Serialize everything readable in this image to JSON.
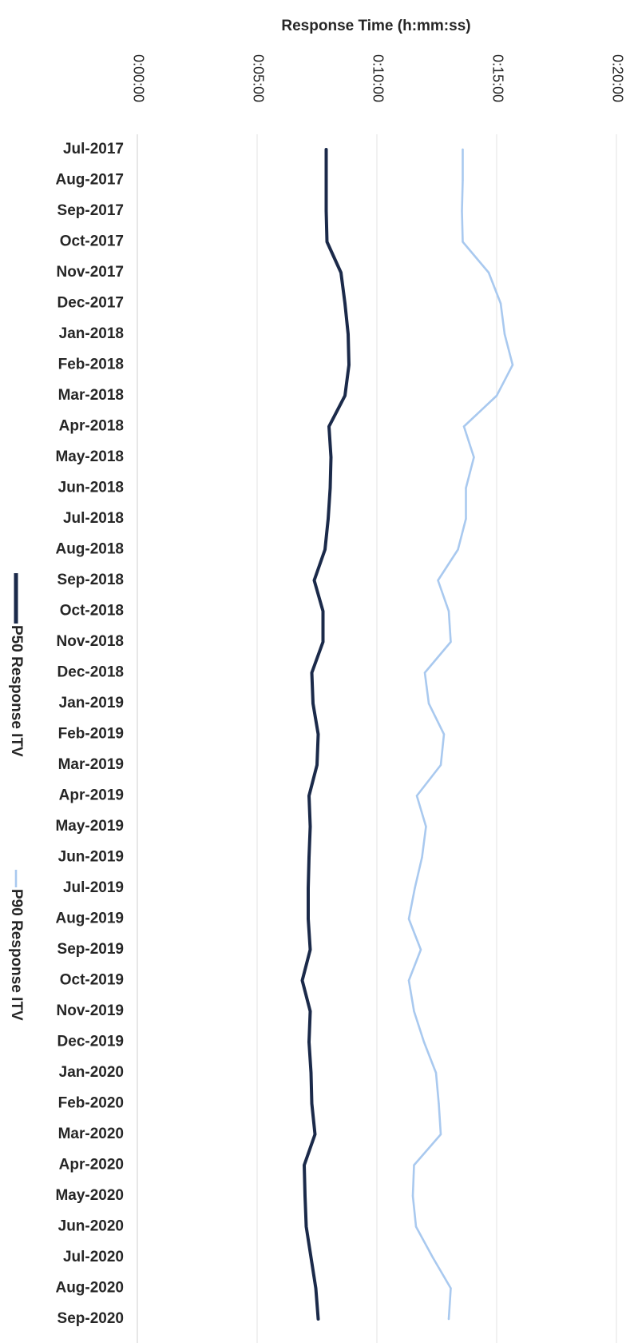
{
  "chart_data": {
    "type": "line",
    "orientation": "vertical-categories",
    "xlabel": "Response Time (h:mm:ss)",
    "ylabel": "",
    "xlim_seconds": [
      0,
      1200
    ],
    "x_ticks": [
      {
        "seconds": 0,
        "label": "0:00:00"
      },
      {
        "seconds": 300,
        "label": "0:05:00"
      },
      {
        "seconds": 600,
        "label": "0:10:00"
      },
      {
        "seconds": 900,
        "label": "0:15:00"
      },
      {
        "seconds": 1200,
        "label": "0:20:00"
      }
    ],
    "grid": true,
    "legend_position": "left",
    "categories": [
      "Jul-2017",
      "Aug-2017",
      "Sep-2017",
      "Oct-2017",
      "Nov-2017",
      "Dec-2017",
      "Jan-2018",
      "Feb-2018",
      "Mar-2018",
      "Apr-2018",
      "May-2018",
      "Jun-2018",
      "Jul-2018",
      "Aug-2018",
      "Sep-2018",
      "Oct-2018",
      "Nov-2018",
      "Dec-2018",
      "Jan-2019",
      "Feb-2019",
      "Mar-2019",
      "Apr-2019",
      "May-2019",
      "Jun-2019",
      "Jul-2019",
      "Aug-2019",
      "Sep-2019",
      "Oct-2019",
      "Nov-2019",
      "Dec-2019",
      "Jan-2020",
      "Feb-2020",
      "Mar-2020",
      "Apr-2020",
      "May-2020",
      "Jun-2020",
      "Jul-2020",
      "Aug-2020",
      "Sep-2020"
    ],
    "series": [
      {
        "name": "P50 Response ITV",
        "color": "#1b2a4a",
        "values_seconds": [
          473,
          473,
          473,
          475,
          510,
          520,
          528,
          530,
          520,
          480,
          485,
          483,
          478,
          470,
          443,
          465,
          465,
          437,
          440,
          453,
          450,
          430,
          433,
          430,
          428,
          428,
          433,
          413,
          433,
          430,
          435,
          437,
          445,
          418,
          420,
          423,
          435,
          447,
          453
        ]
      },
      {
        "name": "P90 Response ITV",
        "color": "#a9c9ef",
        "values_seconds": [
          815,
          815,
          813,
          815,
          880,
          910,
          920,
          940,
          900,
          818,
          843,
          823,
          823,
          803,
          753,
          780,
          785,
          720,
          730,
          768,
          760,
          700,
          723,
          713,
          695,
          680,
          710,
          680,
          693,
          718,
          748,
          755,
          760,
          693,
          690,
          698,
          740,
          785,
          780
        ]
      }
    ]
  }
}
